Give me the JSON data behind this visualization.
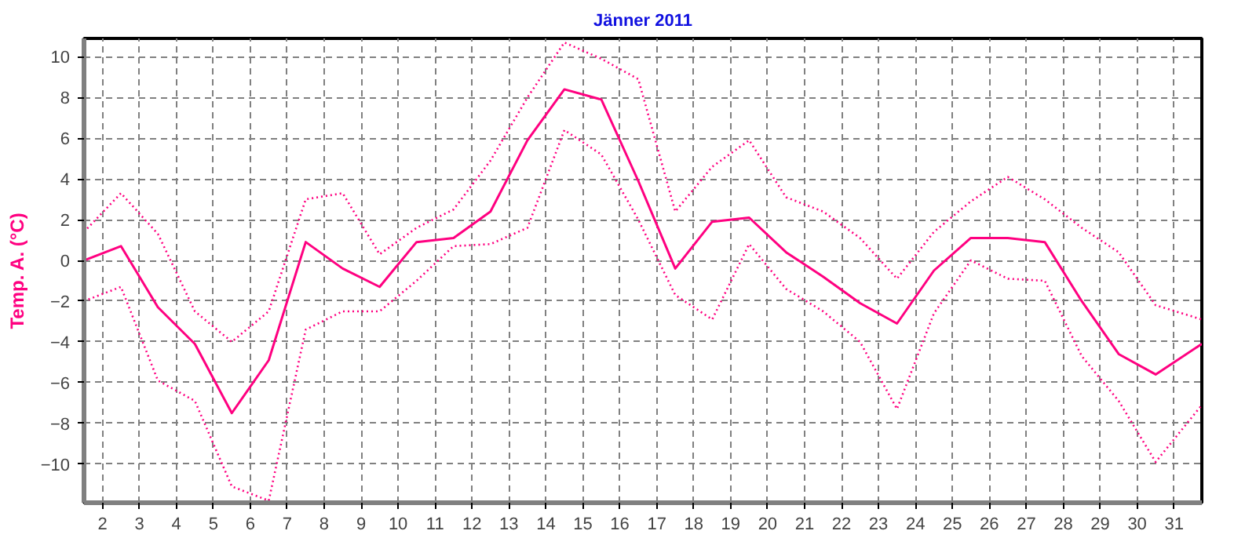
{
  "chart_data": {
    "type": "line",
    "title": "Jänner 2011",
    "ylabel": "Temp. A. (°C)",
    "x": [
      1.5,
      2.5,
      3.5,
      4.5,
      5.5,
      6.5,
      7.5,
      8.5,
      9.5,
      10.5,
      11.5,
      12.5,
      13.5,
      14.5,
      15.5,
      16.5,
      17.5,
      18.5,
      19.5,
      20.5,
      21.5,
      22.5,
      23.5,
      24.5,
      25.5,
      26.5,
      27.5,
      28.5,
      29.5,
      30.5,
      31.75
    ],
    "series": [
      {
        "color": "#ff0080",
        "line_style": "solid",
        "values": [
          0.0,
          0.7,
          -2.3,
          -4.1,
          -7.5,
          -4.9,
          0.9,
          -0.4,
          -1.3,
          0.9,
          1.1,
          2.4,
          5.9,
          8.4,
          7.9,
          3.9,
          -0.4,
          1.9,
          2.1,
          0.4,
          -0.8,
          -2.1,
          -3.1,
          -0.5,
          1.1,
          1.1,
          0.9,
          -2.0,
          -4.6,
          -5.6,
          -4.1
        ]
      },
      {
        "color": "#ff0080",
        "line_style": "dotted",
        "values": [
          1.4,
          3.3,
          1.3,
          -2.5,
          -4.0,
          -2.5,
          3.0,
          3.3,
          0.3,
          1.6,
          2.5,
          4.9,
          8.0,
          10.7,
          9.9,
          8.9,
          2.4,
          4.6,
          5.9,
          3.1,
          2.4,
          1.1,
          -0.9,
          1.4,
          2.9,
          4.1,
          3.0,
          1.6,
          0.4,
          -2.2,
          -2.9
        ]
      },
      {
        "color": "#ff0080",
        "line_style": "dotted",
        "values": [
          -2.0,
          -1.3,
          -5.9,
          -6.9,
          -11.1,
          -11.8,
          -3.4,
          -2.5,
          -2.5,
          -1.0,
          0.7,
          0.8,
          1.6,
          6.4,
          5.2,
          2.0,
          -1.7,
          -2.9,
          0.8,
          -1.4,
          -2.5,
          -4.0,
          -7.3,
          -2.6,
          0.0,
          -0.9,
          -1.0,
          -4.7,
          -6.9,
          -9.9,
          -7.1
        ]
      }
    ],
    "xlim": [
      1.5,
      31.75
    ],
    "ylim": [
      -11.9,
      10.9
    ],
    "xticks": [
      2,
      3,
      4,
      5,
      6,
      7,
      8,
      9,
      10,
      11,
      12,
      13,
      14,
      15,
      16,
      17,
      18,
      19,
      20,
      21,
      22,
      23,
      24,
      25,
      26,
      27,
      28,
      29,
      30,
      31
    ],
    "yticks": [
      -10,
      -8,
      -6,
      -4,
      -2,
      0,
      2,
      4,
      6,
      8,
      10
    ],
    "grid": true
  }
}
